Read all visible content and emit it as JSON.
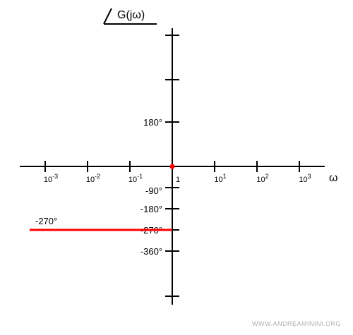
{
  "title": "G(jω)",
  "xlabel": "ω",
  "watermark": "WWW.ANDREAMININI.ORG",
  "colors": {
    "axis": "#000000",
    "series": "#ff0000"
  },
  "chart_data": {
    "type": "line",
    "title": "G(jω)",
    "xlabel": "ω",
    "ylabel": "",
    "x_scale": "log",
    "x_ticks": [
      {
        "base": "10",
        "exp": "-3"
      },
      {
        "base": "10",
        "exp": "-2"
      },
      {
        "base": "10",
        "exp": "-1"
      },
      {
        "base": "1",
        "exp": ""
      },
      {
        "base": "10",
        "exp": "1"
      },
      {
        "base": "10",
        "exp": "2"
      },
      {
        "base": "10",
        "exp": "3"
      }
    ],
    "y_ticks": [
      {
        "value": 180,
        "label": "180°"
      },
      {
        "value": -90,
        "label": "-90°"
      },
      {
        "value": -180,
        "label": "-180°"
      },
      {
        "value": -270,
        "label": "-270°"
      },
      {
        "value": -360,
        "label": "-360°"
      }
    ],
    "series": [
      {
        "label": "-270°",
        "x": [
          0.0003,
          1
        ],
        "y": [
          -270,
          -270
        ]
      }
    ],
    "point": {
      "x": 1,
      "y": 0
    }
  }
}
